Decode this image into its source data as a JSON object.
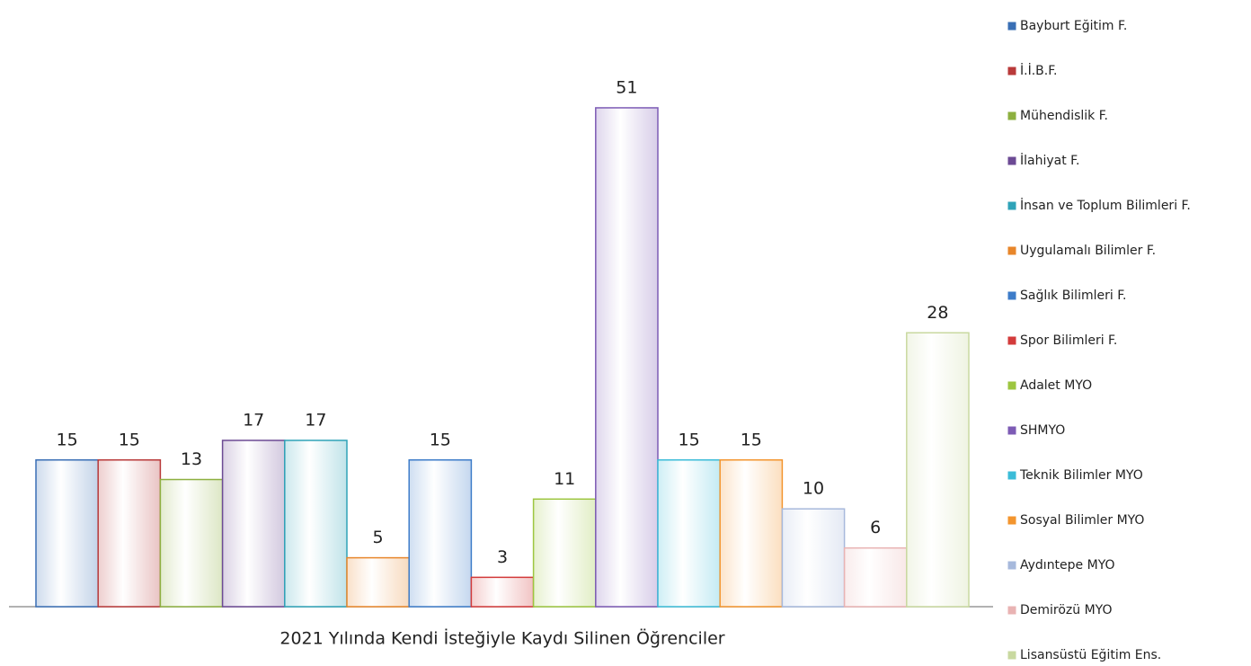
{
  "chart_data": {
    "type": "bar",
    "categories": [
      "2021 Yılında Kendi İsteğiyle Kaydı Silinen Öğrenciler"
    ],
    "ylim": [
      0,
      60
    ],
    "series": [
      {
        "name": "Bayburt Eğitim F.",
        "color": "#3a6fb5",
        "values": [
          15
        ]
      },
      {
        "name": "İ.İ.B.F.",
        "color": "#b93a3a",
        "values": [
          15
        ]
      },
      {
        "name": "Mühendislik F.",
        "color": "#8db040",
        "values": [
          13
        ]
      },
      {
        "name": "İlahiyat F.",
        "color": "#6c4a94",
        "values": [
          17
        ]
      },
      {
        "name": "İnsan ve Toplum Bilimleri F.",
        "color": "#2fa3b8",
        "values": [
          17
        ]
      },
      {
        "name": "Uygulamalı Bilimler F.",
        "color": "#e8862a",
        "values": [
          5
        ]
      },
      {
        "name": "Sağlık Bilimleri F.",
        "color": "#3d7cc9",
        "values": [
          15
        ]
      },
      {
        "name": "Spor Bilimleri F.",
        "color": "#d33b3b",
        "values": [
          3
        ]
      },
      {
        "name": "Adalet MYO",
        "color": "#9dc640",
        "values": [
          11
        ]
      },
      {
        "name": "SHMYO",
        "color": "#7d5bb5",
        "values": [
          51
        ]
      },
      {
        "name": "Teknik Bilimler MYO",
        "color": "#3bbcd8",
        "values": [
          15
        ]
      },
      {
        "name": "Sosyal Bilimler MYO",
        "color": "#f3952e",
        "values": [
          15
        ]
      },
      {
        "name": "Aydıntepe MYO",
        "color": "#a7b9dc",
        "values": [
          10
        ]
      },
      {
        "name": "Demirözü MYO",
        "color": "#e9b3b3",
        "values": [
          6
        ]
      },
      {
        "name": "Lisansüstü Eğitim Ens.",
        "color": "#c9d9a0",
        "values": [
          28
        ]
      }
    ]
  }
}
